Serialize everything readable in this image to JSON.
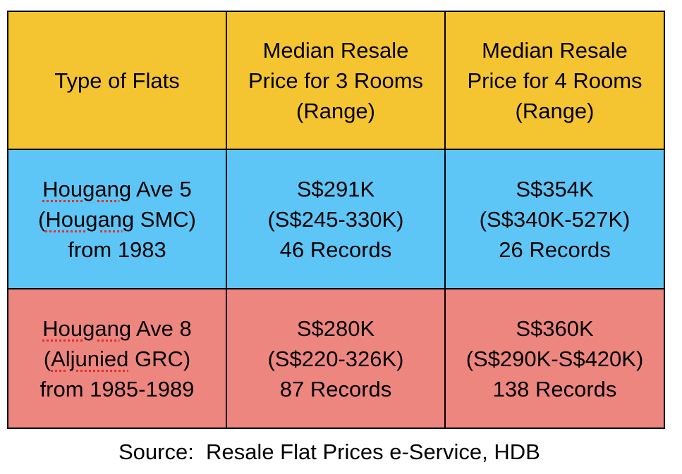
{
  "colors": {
    "header_bg": "#f5c431",
    "row1_bg": "#5ec6f6",
    "row2_bg": "#ee8680",
    "border": "#000000"
  },
  "table": {
    "header": {
      "col1": [
        "Type of Flats"
      ],
      "col2": [
        "Median Resale",
        "Price for 3 Rooms",
        "(Range)"
      ],
      "col3": [
        "Median Resale",
        "Price for 4 Rooms",
        "(Range)"
      ]
    },
    "rows": [
      {
        "flat": {
          "word": "Hougang",
          "rest1": " Ave 5",
          "open": "(",
          "word2": "Hougang",
          "rest2": " SMC)",
          "line3": "from 1983"
        },
        "three_rooms": {
          "price": "S$291K",
          "range": "(S$245-330K)",
          "records": "46 Records"
        },
        "four_rooms": {
          "price": "S$354K",
          "range": "(S$340K-527K)",
          "records": "26 Records"
        }
      },
      {
        "flat": {
          "word": "Hougang",
          "rest1": " Ave 8",
          "open": "(",
          "word2": "Aljunied",
          "rest2": " GRC)",
          "line3": "from 1985-1989"
        },
        "three_rooms": {
          "price": "S$280K",
          "range": "(S$220-326K)",
          "records": "87 Records"
        },
        "four_rooms": {
          "price": "S$360K",
          "range": "(S$290K-S$420K)",
          "records": "138 Records"
        }
      }
    ]
  },
  "source": "Source:  Resale Flat Prices e-Service, HDB"
}
